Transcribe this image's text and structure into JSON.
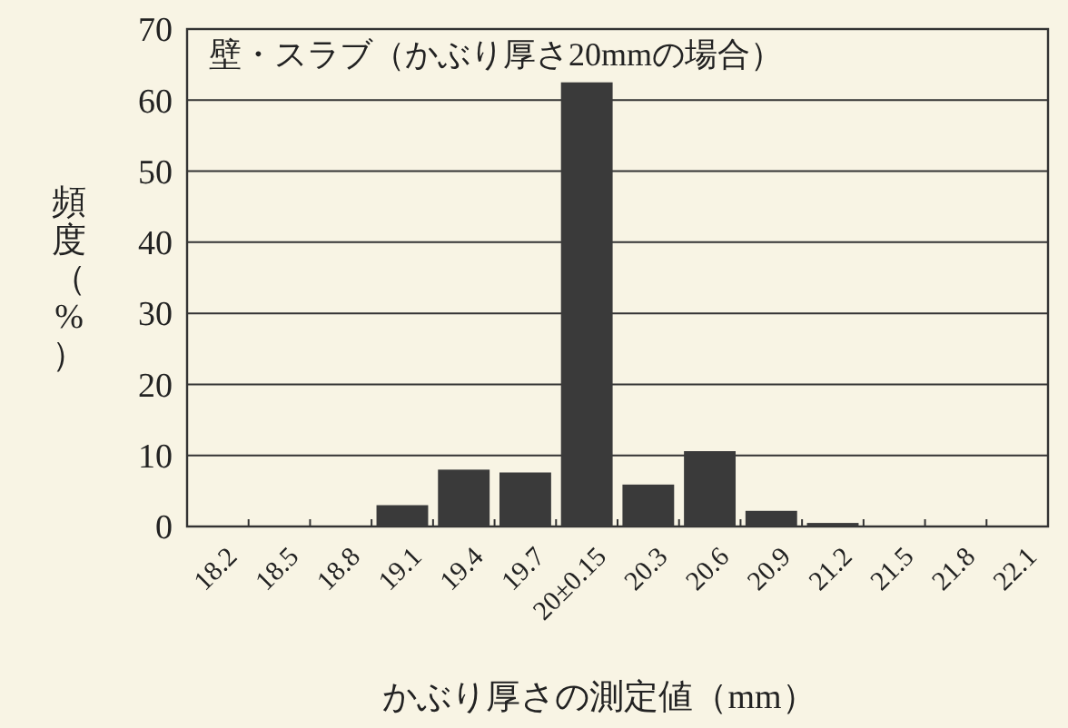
{
  "chart_data": {
    "type": "bar",
    "title": "壁・スラブ（かぶり厚さ20mmの場合）",
    "xlabel": "かぶり厚さの測定値（mm）",
    "ylabel": "頻度（%）",
    "categories": [
      "18.2",
      "18.5",
      "18.8",
      "19.1",
      "19.4",
      "19.7",
      "20±0.15",
      "20.3",
      "20.6",
      "20.9",
      "21.2",
      "21.5",
      "21.8",
      "22.1"
    ],
    "values": [
      0,
      0,
      0,
      3.0,
      8.0,
      7.6,
      62.5,
      5.9,
      10.6,
      2.2,
      0.5,
      0,
      0,
      0
    ],
    "color": "#3a3a3a",
    "ylim": [
      0,
      70
    ],
    "yticks": [
      0,
      10,
      20,
      30,
      40,
      50,
      60,
      70
    ],
    "grid": "y"
  }
}
